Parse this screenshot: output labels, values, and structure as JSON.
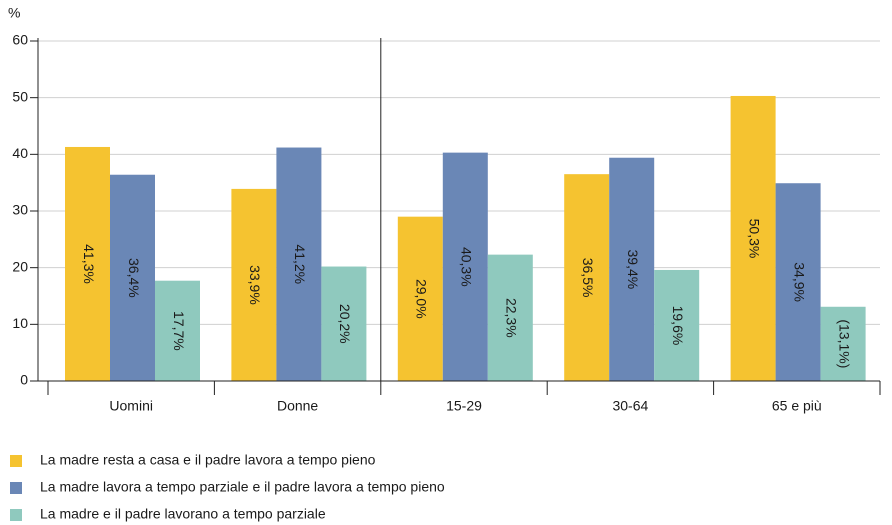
{
  "chart_data": {
    "type": "bar",
    "ylabel": "%",
    "categories": [
      "Uomini",
      "Donne",
      "15-29",
      "30-64",
      "65 e più"
    ],
    "series": [
      {
        "name": "La madre resta a casa e il padre lavora a tempo pieno",
        "color": "#f5c330",
        "values": [
          41.3,
          33.9,
          29.0,
          36.5,
          50.3
        ],
        "value_labels": [
          "41,3%",
          "33,9%",
          "29,0%",
          "36,5%",
          "50,3%"
        ]
      },
      {
        "name": "La madre lavora a tempo parziale e il padre lavora a tempo pieno",
        "color": "#6a87b6",
        "values": [
          36.4,
          41.2,
          40.3,
          39.4,
          34.9
        ],
        "value_labels": [
          "36,4%",
          "41,2%",
          "40,3%",
          "39,4%",
          "34,9%"
        ]
      },
      {
        "name": "La madre e il padre lavorano a tempo parziale",
        "color": "#8fc9be",
        "values": [
          17.7,
          20.2,
          22.3,
          19.6,
          13.1
        ],
        "value_labels": [
          "17,7%",
          "20,2%",
          "22,3%",
          "19,6%",
          "(13,1%)"
        ]
      }
    ],
    "ylim": [
      0,
      60
    ],
    "yticks": [
      0,
      10,
      20,
      30,
      40,
      50,
      60
    ],
    "grid": true
  }
}
